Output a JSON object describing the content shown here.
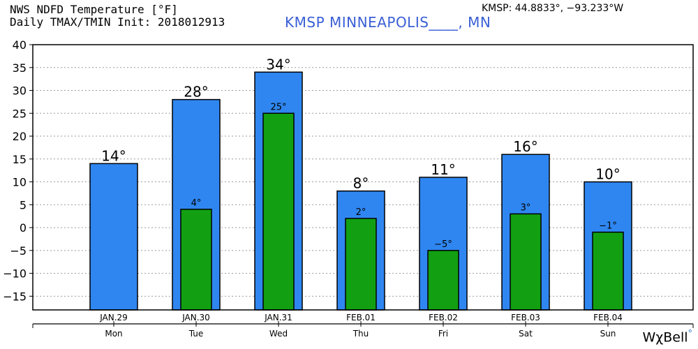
{
  "header": {
    "line1": "NWS NDFD Temperature [°F]",
    "line2": "Daily TMAX/TMIN Init: 2018012913",
    "station": "KMSP MINNEAPOLIS____, MN",
    "coords": "KMSP: 44.8833°, −93.233°W"
  },
  "brand": {
    "text": "WχBell",
    "dot": "°"
  },
  "colors": {
    "max_bar": "#2f86f0",
    "min_bar": "#12a012",
    "grid": "#9a9a9a",
    "outline": "#000000"
  },
  "chart_data": {
    "type": "bar",
    "categories": [
      "JAN.29",
      "JAN.30",
      "JAN.31",
      "FEB.01",
      "FEB.02",
      "FEB.03",
      "FEB.04"
    ],
    "days": [
      "Mon",
      "Tue",
      "Wed",
      "Thu",
      "Fri",
      "Sat",
      "Sun"
    ],
    "series": [
      {
        "values": [
          14,
          28,
          34,
          8,
          11,
          16,
          10
        ],
        "labels": [
          "14°",
          "28°",
          "34°",
          "8°",
          "11°",
          "16°",
          "10°"
        ]
      },
      {
        "values": [
          null,
          4,
          25,
          2,
          -5,
          3,
          -1
        ],
        "labels": [
          "",
          "4°",
          "25°",
          "2°",
          "−5°",
          "3°",
          "−1°"
        ]
      }
    ],
    "ylim": [
      -18,
      40
    ],
    "yticks": [
      40,
      35,
      30,
      25,
      20,
      15,
      10,
      5,
      0,
      -5,
      -10,
      -15
    ],
    "grid": true,
    "legend": "none"
  }
}
